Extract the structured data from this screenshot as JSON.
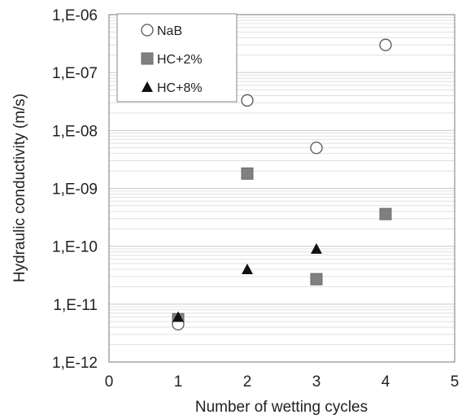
{
  "chart_data": {
    "type": "scatter",
    "xlabel": "Number of wetting cycles",
    "ylabel": "Hydraulic conductivity (m/s)",
    "xlim": [
      0,
      5
    ],
    "ylim": [
      1e-12,
      1e-06
    ],
    "yscale": "log",
    "x_ticks": [
      0,
      1,
      2,
      3,
      4,
      5
    ],
    "x_tick_labels": [
      "0",
      "1",
      "2",
      "3",
      "4",
      "5"
    ],
    "y_ticks": [
      1e-12,
      1e-11,
      1e-10,
      1e-09,
      1e-08,
      1e-07,
      1e-06
    ],
    "y_tick_labels": [
      "1,E-12",
      "1,E-11",
      "1,E-10",
      "1,E-09",
      "1,E-08",
      "1,E-07",
      "1,E-06"
    ],
    "grid": "horizontal minor gridlines",
    "legend_position": "top-left",
    "series": [
      {
        "name": "NaB",
        "marker": "circle-open",
        "color": "#555555",
        "points": [
          {
            "x": 1,
            "y": 4.5e-12
          },
          {
            "x": 2,
            "y": 3.3e-08
          },
          {
            "x": 3,
            "y": 5e-09
          },
          {
            "x": 4,
            "y": 3e-07
          }
        ]
      },
      {
        "name": "HC+2%",
        "marker": "square",
        "color": "#808080",
        "points": [
          {
            "x": 1,
            "y": 5.5e-12
          },
          {
            "x": 2,
            "y": 1.8e-09
          },
          {
            "x": 3,
            "y": 2.7e-11
          },
          {
            "x": 4,
            "y": 3.6e-10
          }
        ]
      },
      {
        "name": "HC+8%",
        "marker": "triangle",
        "color": "#111111",
        "points": [
          {
            "x": 1,
            "y": 6e-12
          },
          {
            "x": 2,
            "y": 4e-11
          },
          {
            "x": 3,
            "y": 9e-11
          }
        ]
      }
    ]
  }
}
